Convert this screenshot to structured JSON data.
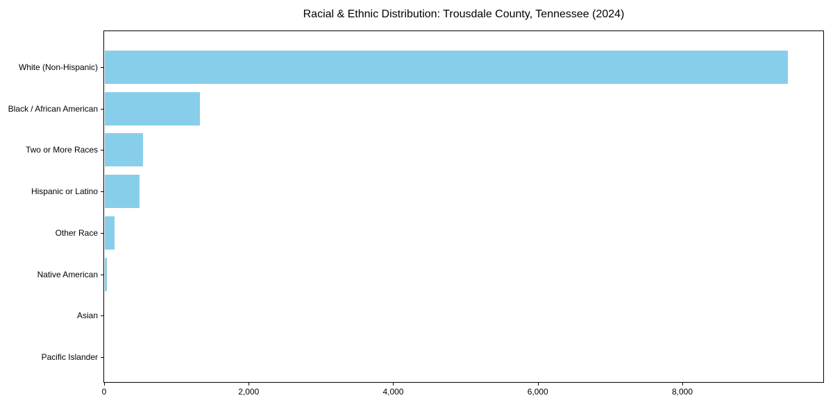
{
  "chart_data": {
    "type": "bar",
    "orientation": "horizontal",
    "title": "Racial & Ethnic Distribution: Trousdale County, Tennessee (2024)",
    "xlabel": "",
    "ylabel": "",
    "categories": [
      "White (Non-Hispanic)",
      "Black / African American",
      "Two or More Races",
      "Hispanic or Latino",
      "Other Race",
      "Native American",
      "Asian",
      "Pacific Islander"
    ],
    "values": [
      9450,
      1320,
      530,
      480,
      130,
      25,
      0,
      0
    ],
    "xlim": [
      0,
      9950
    ],
    "x_ticks": [
      0,
      2000,
      4000,
      6000,
      8000
    ],
    "x_tick_labels": [
      "0",
      "2,000",
      "4,000",
      "6,000",
      "8,000"
    ],
    "bar_color": "#87CEEB",
    "grid": false,
    "legend": false,
    "background_color": "#ffffff"
  }
}
